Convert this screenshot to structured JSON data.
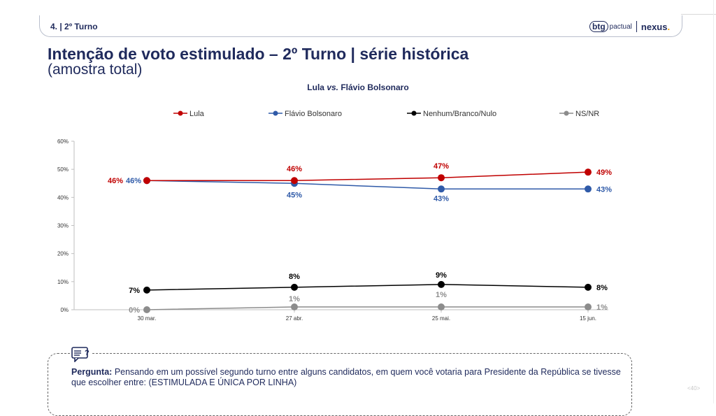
{
  "header": {
    "section": "4. | 2º Turno",
    "brand_btg": "btg",
    "brand_pactual": "pactual",
    "brand_nexus": "nexus",
    "brand_dot": "."
  },
  "title": "Intenção de voto estimulado – 2º Turno | série histórica",
  "subtitle": "(amostra total)",
  "chart_heading": {
    "name1": "Lula ",
    "vs": "vs.",
    "name2": " Flávio Bolsonaro"
  },
  "chart_data": {
    "type": "line",
    "categories": [
      "30 mar.",
      "27 abr.",
      "25 mai.",
      "15 jun."
    ],
    "ylim": [
      0,
      60
    ],
    "yticks": [
      0,
      10,
      20,
      30,
      40,
      50,
      60
    ],
    "ytick_labels": [
      "0%",
      "10%",
      "20%",
      "30%",
      "40%",
      "50%",
      "60%"
    ],
    "grid": false,
    "legend_position": "top",
    "series": [
      {
        "name": "Lula",
        "color": "#c00000",
        "values": [
          46,
          46,
          47,
          49
        ],
        "labels": [
          "46%",
          "46%",
          "47%",
          "49%"
        ]
      },
      {
        "name": "Flávio Bolsonaro",
        "color": "#2f5aa8",
        "values": [
          46,
          45,
          43,
          43
        ],
        "labels": [
          "46%",
          "45%",
          "43%",
          "43%"
        ]
      },
      {
        "name": "Nenhum/Branco/Nulo",
        "color": "#000000",
        "values": [
          7,
          8,
          9,
          8
        ],
        "labels": [
          "7%",
          "8%",
          "9%",
          "8%"
        ]
      },
      {
        "name": "NS/NR",
        "color": "#8c8c8c",
        "values": [
          0,
          1,
          1,
          1
        ],
        "labels": [
          "0%",
          "1%",
          "1%",
          "1%"
        ]
      }
    ]
  },
  "question": {
    "label": "Pergunta:",
    "text": " Pensando em um possível segundo turno entre alguns candidatos, em quem você votaria para Presidente da República se tivesse que escolher entre: (ESTIMULADA E ÚNICA POR LINHA)"
  },
  "page_number": "<40>",
  "icons": {
    "question": "chat-question-icon"
  }
}
